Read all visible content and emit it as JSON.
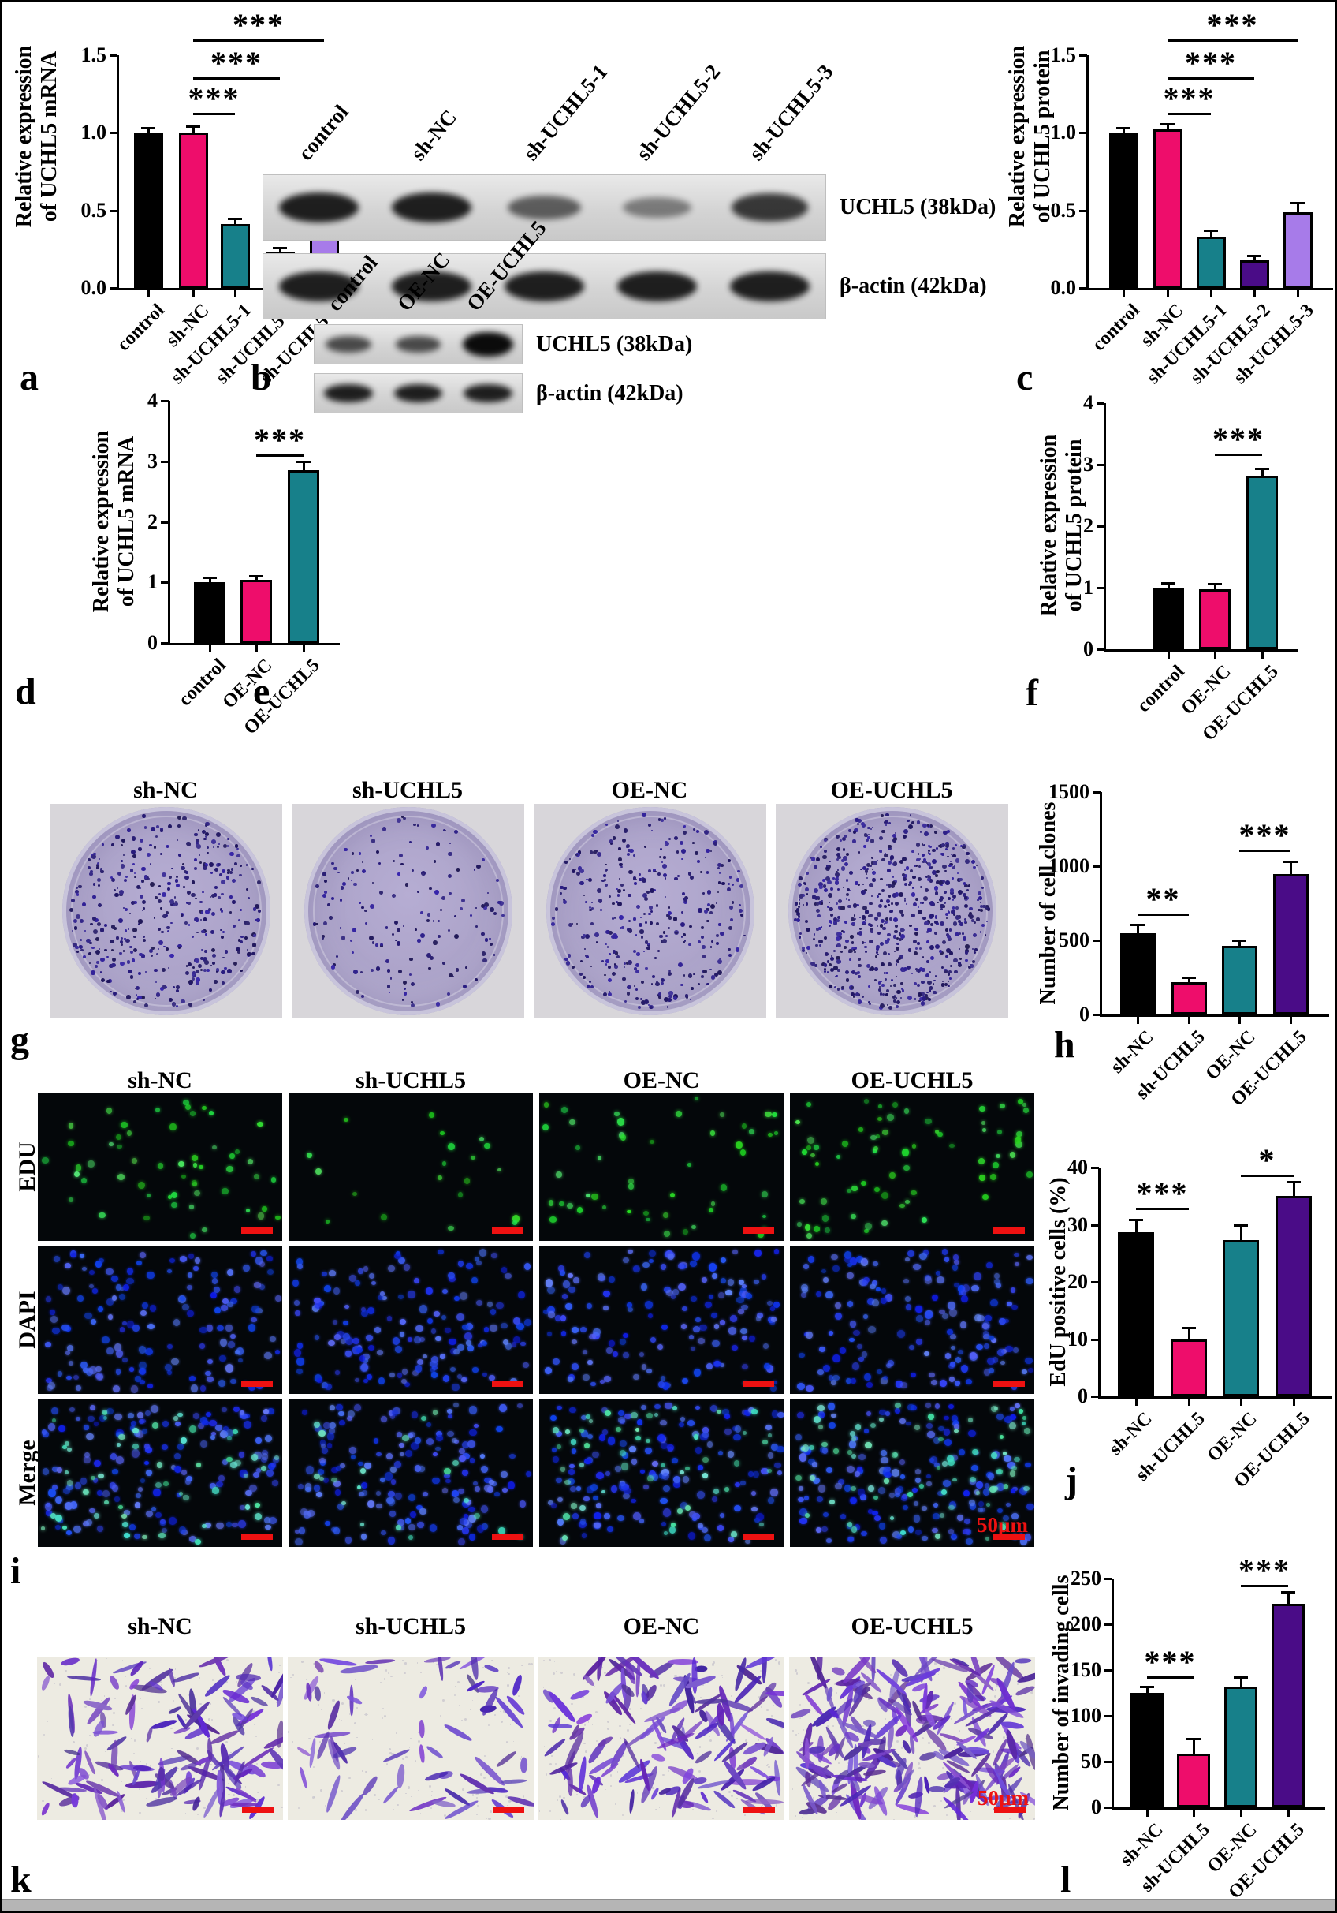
{
  "panel_letters": [
    "a",
    "b",
    "c",
    "d",
    "e",
    "f",
    "g",
    "h",
    "i",
    "j",
    "k",
    "l"
  ],
  "colors": {
    "black": "#000000",
    "pink": "#EE0D6B",
    "teal": "#17808A",
    "purple": "#4A0C87",
    "lavender": "#A77BE9",
    "scale_bar_red": "#EE1111",
    "band": "#0b0b0b"
  },
  "chart_data": [
    {
      "type": "bar",
      "id": "a",
      "ylabel": [
        "Relative expression",
        "of UCHL5 mRNA"
      ],
      "ylim": [
        0,
        1.5
      ],
      "yticks": [
        "0.0",
        "0.5",
        "1.0",
        "1.5"
      ],
      "categories": [
        "control",
        "sh-NC",
        "sh-UCHL5-1",
        "sh-UCHL5-2",
        "sh-UCHL5-3"
      ],
      "values": [
        1.0,
        1.0,
        0.41,
        0.23,
        0.59
      ],
      "errors": [
        0.03,
        0.04,
        0.04,
        0.03,
        0.05
      ],
      "bar_colors": [
        "black",
        "pink",
        "teal",
        "purple",
        "lavender"
      ],
      "sig": [
        {
          "from": 1,
          "to": 2,
          "y": 1.13,
          "label": "***"
        },
        {
          "from": 1,
          "to": 3,
          "y": 1.36,
          "label": "***"
        },
        {
          "from": 1,
          "to": 4,
          "y": 1.6,
          "label": "***"
        }
      ]
    },
    {
      "type": "bar",
      "id": "c",
      "ylabel": [
        "Relative expression",
        "of UCHL5 protein"
      ],
      "ylim": [
        0,
        1.5
      ],
      "yticks": [
        "0.0",
        "0.5",
        "1.0",
        "1.5"
      ],
      "categories": [
        "control",
        "sh-NC",
        "sh-UCHL5-1",
        "sh-UCHL5-2",
        "sh-UCHL5-3"
      ],
      "values": [
        1.0,
        1.02,
        0.33,
        0.18,
        0.49
      ],
      "errors": [
        0.03,
        0.04,
        0.04,
        0.03,
        0.06
      ],
      "bar_colors": [
        "black",
        "pink",
        "teal",
        "purple",
        "lavender"
      ],
      "sig": [
        {
          "from": 1,
          "to": 2,
          "y": 1.13,
          "label": "***"
        },
        {
          "from": 1,
          "to": 3,
          "y": 1.36,
          "label": "***"
        },
        {
          "from": 1,
          "to": 4,
          "y": 1.6,
          "label": "***"
        }
      ]
    },
    {
      "type": "bar",
      "id": "d",
      "ylabel": [
        "Relative expression",
        "of UCHL5 mRNA"
      ],
      "ylim": [
        0,
        4
      ],
      "yticks": [
        "0",
        "1",
        "2",
        "3",
        "4"
      ],
      "categories": [
        "control",
        "OE-NC",
        "OE-UCHL5"
      ],
      "values": [
        1.0,
        1.04,
        2.85
      ],
      "errors": [
        0.08,
        0.07,
        0.15
      ],
      "bar_colors": [
        "black",
        "pink",
        "teal"
      ],
      "sig": [
        {
          "from": 1,
          "to": 2,
          "y": 3.12,
          "label": "***"
        }
      ]
    },
    {
      "type": "bar",
      "id": "f",
      "ylabel": [
        "Relative expression",
        "of UCHL5 protein"
      ],
      "ylim": [
        0,
        4
      ],
      "yticks": [
        "0",
        "1",
        "2",
        "3",
        "4"
      ],
      "categories": [
        "control",
        "OE-NC",
        "OE-UCHL5"
      ],
      "values": [
        1.0,
        0.98,
        2.82
      ],
      "errors": [
        0.08,
        0.09,
        0.12
      ],
      "bar_colors": [
        "black",
        "pink",
        "teal"
      ],
      "sig": [
        {
          "from": 1,
          "to": 2,
          "y": 3.18,
          "label": "***"
        }
      ]
    },
    {
      "type": "bar",
      "id": "h",
      "ylabel": [
        "Number of cell clones"
      ],
      "ylim": [
        0,
        1500
      ],
      "yticks": [
        "0",
        "500",
        "1000",
        "1500"
      ],
      "categories": [
        "sh-NC",
        "sh-UCHL5",
        "OE-NC",
        "OE-UCHL5"
      ],
      "values": [
        550,
        220,
        465,
        945
      ],
      "errors": [
        55,
        30,
        35,
        85
      ],
      "bar_colors": [
        "black",
        "pink",
        "teal",
        "purple"
      ],
      "sig": [
        {
          "from": 0,
          "to": 1,
          "y": 680,
          "label": "**"
        },
        {
          "from": 2,
          "to": 3,
          "y": 1110,
          "label": "***"
        }
      ]
    },
    {
      "type": "bar",
      "id": "j",
      "ylabel": [
        "EdU positive cells (%)"
      ],
      "ylim": [
        0,
        40
      ],
      "yticks": [
        "0",
        "10",
        "20",
        "30",
        "40"
      ],
      "categories": [
        "sh-NC",
        "sh-UCHL5",
        "OE-NC",
        "OE-UCHL5"
      ],
      "values": [
        28.7,
        10,
        27.3,
        35
      ],
      "errors": [
        2.2,
        2.0,
        2.7,
        2.5
      ],
      "bar_colors": [
        "black",
        "pink",
        "teal",
        "purple"
      ],
      "sig": [
        {
          "from": 0,
          "to": 1,
          "y": 33,
          "label": "***"
        },
        {
          "from": 2,
          "to": 3,
          "y": 38.8,
          "label": "*"
        }
      ]
    },
    {
      "type": "bar",
      "id": "l",
      "ylabel": [
        "Number of invading cells"
      ],
      "ylim": [
        0,
        250
      ],
      "yticks": [
        "0",
        "50",
        "100",
        "150",
        "200",
        "250"
      ],
      "categories": [
        "sh-NC",
        "sh-UCHL5",
        "OE-NC",
        "OE-UCHL5"
      ],
      "values": [
        125,
        59,
        132,
        222
      ],
      "errors": [
        7,
        16,
        10,
        13
      ],
      "bar_colors": [
        "black",
        "pink",
        "teal",
        "purple"
      ],
      "sig": [
        {
          "from": 0,
          "to": 1,
          "y": 143,
          "label": "***"
        },
        {
          "from": 2,
          "to": 3,
          "y": 243,
          "label": "***"
        }
      ]
    }
  ],
  "blots": [
    {
      "id": "b",
      "lanes": [
        "control",
        "sh-NC",
        "sh-UCHL5-1",
        "sh-UCHL5-2",
        "sh-UCHL5-3"
      ],
      "rows": [
        {
          "label": "UCHL5 (38kDa)",
          "band_intensities": [
            1,
            1,
            0.5,
            0.25,
            0.8
          ]
        },
        {
          "label": "β-actin (42kDa)",
          "band_intensities": [
            1,
            1,
            1,
            1,
            1
          ]
        }
      ]
    },
    {
      "id": "e",
      "lanes": [
        "control",
        "OE-NC",
        "OE-UCHL5"
      ],
      "rows": [
        {
          "label": "UCHL5 (38kDa)",
          "band_intensities": [
            0.65,
            0.65,
            1.8
          ]
        },
        {
          "label": "β-actin (42kDa)",
          "band_intensities": [
            1,
            1,
            1
          ]
        }
      ]
    }
  ],
  "colony_assay": {
    "headers": [
      "sh-NC",
      "sh-UCHL5",
      "OE-NC",
      "OE-UCHL5"
    ],
    "dish_colony_counts": [
      550,
      220,
      465,
      945
    ]
  },
  "edu_assay": {
    "headers": [
      "sh-NC",
      "sh-UCHL5",
      "OE-NC",
      "OE-UCHL5"
    ],
    "row_labels": [
      "EDU",
      "DAPI",
      "Merge"
    ],
    "edu_positive_counts": [
      55,
      20,
      50,
      72
    ],
    "dapi_counts": [
      150,
      160,
      150,
      165
    ],
    "scale_label": "50µm"
  },
  "invasion_assay": {
    "headers": [
      "sh-NC",
      "sh-UCHL5",
      "OE-NC",
      "OE-UCHL5"
    ],
    "cell_counts": [
      125,
      59,
      132,
      222
    ],
    "scale_label": "50µm"
  }
}
